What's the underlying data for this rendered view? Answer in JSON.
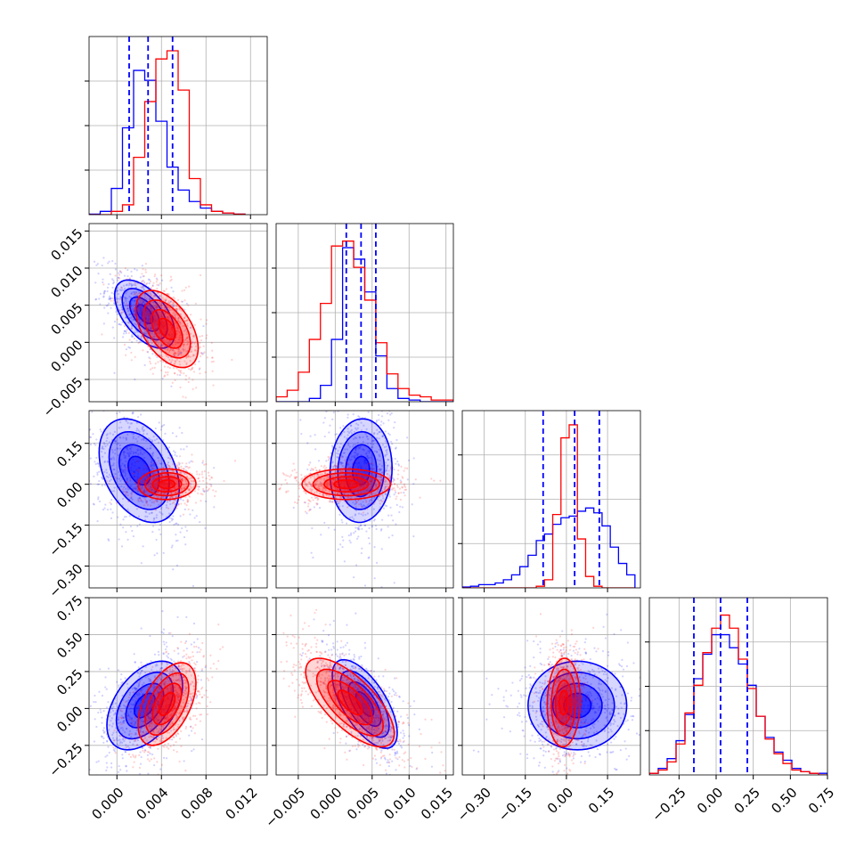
{
  "chart_data": {
    "type": "corner",
    "title": "",
    "grid": true,
    "series": [
      {
        "name": "",
        "color": "#0000ff",
        "quantile_line_color": "#0000ff"
      },
      {
        "name": "",
        "color": "#ff0000"
      }
    ],
    "parameters": [
      {
        "label": "",
        "range": [
          -0.0025,
          0.0135
        ],
        "ticks": [
          0.0,
          0.004,
          0.008,
          0.012
        ],
        "tick_labels": [
          "0.000",
          "0.004",
          "0.008",
          "0.012"
        ],
        "quantiles": [
          0.0011,
          0.0028,
          0.005
        ],
        "hist_bin_edges": [
          -0.0025,
          -0.0015,
          -0.0005,
          0.0005,
          0.0015,
          0.0025,
          0.0035,
          0.0045,
          0.0055,
          0.0065,
          0.0075,
          0.0085,
          0.0095,
          0.0105,
          0.0115
        ],
        "hist_blue": [
          0.003,
          0.02,
          0.16,
          0.53,
          0.88,
          0.82,
          0.57,
          0.29,
          0.15,
          0.08,
          0.04,
          0.02,
          0.01,
          0.003
        ],
        "hist_red": [
          0.0,
          0.0,
          0.02,
          0.06,
          0.35,
          0.69,
          0.95,
          1.0,
          0.76,
          0.22,
          0.06,
          0.02,
          0.01,
          0.003
        ]
      },
      {
        "label": "",
        "range": [
          -0.008,
          0.016
        ],
        "ticks": [
          -0.005,
          0.0,
          0.005,
          0.01,
          0.015
        ],
        "tick_labels": [
          "−0.005",
          "0.000",
          "0.005",
          "0.010",
          "0.015"
        ],
        "quantiles": [
          0.0015,
          0.0035,
          0.0055
        ],
        "hist_bin_edges": [
          -0.008,
          -0.0065,
          -0.005,
          -0.0035,
          -0.002,
          -0.0005,
          0.001,
          0.0025,
          0.004,
          0.0055,
          0.007,
          0.0085,
          0.01,
          0.0115,
          0.013,
          0.0145,
          0.016
        ],
        "hist_blue": [
          0.0,
          0.0,
          0.0,
          0.02,
          0.1,
          0.38,
          0.94,
          0.87,
          0.67,
          0.28,
          0.08,
          0.02,
          0.01,
          0.0,
          0.0,
          0.0
        ],
        "hist_red": [
          0.03,
          0.07,
          0.18,
          0.38,
          0.6,
          0.95,
          0.98,
          0.82,
          0.62,
          0.36,
          0.17,
          0.08,
          0.04,
          0.03,
          0.01,
          0.01
        ]
      },
      {
        "label": "",
        "range": [
          -0.38,
          0.27
        ],
        "ticks": [
          -0.3,
          -0.15,
          0.0,
          0.15
        ],
        "tick_labels": [
          "−0.30",
          "−0.15",
          "0.00",
          "0.15"
        ],
        "quantiles": [
          -0.085,
          0.03,
          0.12
        ],
        "hist_bin_edges": [
          -0.38,
          -0.35,
          -0.32,
          -0.29,
          -0.26,
          -0.23,
          -0.2,
          -0.17,
          -0.14,
          -0.11,
          -0.08,
          -0.05,
          -0.02,
          0.01,
          0.04,
          0.07,
          0.1,
          0.13,
          0.16,
          0.19,
          0.22,
          0.25
        ],
        "hist_blue": [
          0.005,
          0.01,
          0.02,
          0.02,
          0.03,
          0.05,
          0.08,
          0.13,
          0.2,
          0.29,
          0.33,
          0.39,
          0.43,
          0.44,
          0.47,
          0.49,
          0.46,
          0.38,
          0.25,
          0.15,
          0.08
        ],
        "hist_red": [
          0.0,
          0.0,
          0.0,
          0.0,
          0.0,
          0.0,
          0.0,
          0.0,
          0.0,
          0.01,
          0.05,
          0.45,
          0.92,
          1.0,
          0.3,
          0.07,
          0.01,
          0.0,
          0.0,
          0.0,
          0.0
        ]
      },
      {
        "label": "",
        "range": [
          -0.45,
          0.75
        ],
        "ticks": [
          -0.25,
          0.0,
          0.25,
          0.5,
          0.75
        ],
        "tick_labels": [
          "−0.25",
          "0.00",
          "0.25",
          "0.50",
          "0.75"
        ],
        "quantiles": [
          -0.15,
          0.03,
          0.21
        ],
        "hist_bin_edges": [
          -0.45,
          -0.39,
          -0.33,
          -0.27,
          -0.21,
          -0.15,
          -0.09,
          -0.03,
          0.03,
          0.09,
          0.15,
          0.21,
          0.27,
          0.33,
          0.39,
          0.45,
          0.51,
          0.57,
          0.63,
          0.69,
          0.75
        ],
        "hist_blue": [
          0.01,
          0.04,
          0.1,
          0.21,
          0.37,
          0.59,
          0.74,
          0.86,
          0.86,
          0.78,
          0.68,
          0.55,
          0.36,
          0.23,
          0.14,
          0.09,
          0.04,
          0.02,
          0.01,
          0.01
        ],
        "hist_red": [
          0.01,
          0.03,
          0.08,
          0.19,
          0.38,
          0.55,
          0.75,
          0.9,
          0.98,
          0.9,
          0.71,
          0.53,
          0.36,
          0.22,
          0.13,
          0.07,
          0.03,
          0.02,
          0.01,
          0.0
        ]
      }
    ],
    "y_tick_labels": {
      "1": [
        "−0.005",
        "0.000",
        "0.005",
        "0.010",
        "0.015"
      ],
      "2": [
        "−0.30",
        "−0.15",
        "0.00",
        "0.15"
      ],
      "3": [
        "−0.25",
        "0.00",
        "0.25",
        "0.50",
        "0.75"
      ]
    },
    "pairs": {
      "1_0": {
        "blue": {
          "mean": [
            0.0025,
            0.0038
          ],
          "sd": [
            0.00135,
            0.0023
          ],
          "rho": -0.55
        },
        "red": {
          "mean": [
            0.0045,
            0.0018
          ],
          "sd": [
            0.0014,
            0.0026
          ],
          "rho": -0.5
        }
      },
      "2_0": {
        "blue": {
          "mean": [
            0.002,
            0.05
          ],
          "sd": [
            0.0018,
            0.095
          ],
          "rho": -0.35
        },
        "red": {
          "mean": [
            0.0045,
            0.0
          ],
          "sd": [
            0.0013,
            0.028
          ],
          "rho": 0.05
        }
      },
      "2_1": {
        "blue": {
          "mean": [
            0.0035,
            0.05
          ],
          "sd": [
            0.0021,
            0.095
          ],
          "rho": 0.05
        },
        "red": {
          "mean": [
            0.0015,
            0.0
          ],
          "sd": [
            0.003,
            0.028
          ],
          "rho": 0.0
        }
      },
      "3_0": {
        "blue": {
          "mean": [
            0.0025,
            0.02
          ],
          "sd": [
            0.0017,
            0.15
          ],
          "rho": 0.45
        },
        "red": {
          "mean": [
            0.0045,
            0.03
          ],
          "sd": [
            0.0013,
            0.14
          ],
          "rho": 0.5
        }
      },
      "3_1": {
        "blue": {
          "mean": [
            0.004,
            0.03
          ],
          "sd": [
            0.0022,
            0.15
          ],
          "rho": -0.65
        },
        "red": {
          "mean": [
            0.002,
            0.04
          ],
          "sd": [
            0.003,
            0.15
          ],
          "rho": -0.7
        }
      },
      "3_2": {
        "blue": {
          "mean": [
            0.04,
            0.02
          ],
          "sd": [
            0.09,
            0.15
          ],
          "rho": 0.0
        },
        "red": {
          "mean": [
            -0.01,
            0.04
          ],
          "sd": [
            0.03,
            0.15
          ],
          "rho": 0.05
        }
      }
    }
  }
}
